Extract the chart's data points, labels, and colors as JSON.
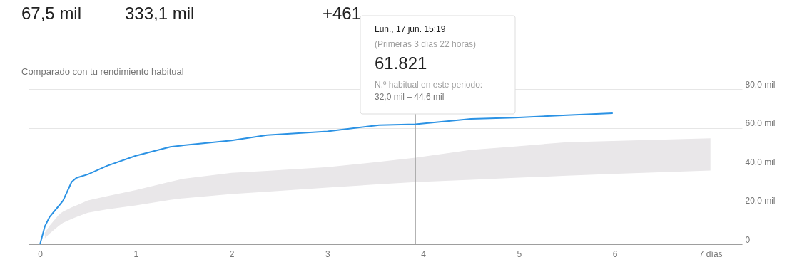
{
  "chart_data": {
    "type": "line",
    "title": "Comparado con tu rendimiento habitual",
    "annotations": [
      "67,5 mil",
      "333,1 mil",
      "+461",
      "Lun., 17 jun. 15:19",
      "(Primeras 3 días 22 horas)",
      "61.821",
      "N.º habitual en este periodo:",
      "32,0 mil – 44,6 mil"
    ],
    "x": [
      0,
      0.05,
      0.1,
      0.2,
      0.24,
      0.33,
      0.38,
      0.5,
      0.7,
      1.0,
      1.36,
      1.5,
      2.0,
      2.37,
      3.0,
      3.54,
      3.92,
      4.5,
      4.96,
      5.5,
      5.98,
      7.0
    ],
    "series": [
      {
        "color": "#2b92e4",
        "values": [
          0,
          9.2,
          14.1,
          20.0,
          22.4,
          32.1,
          34.2,
          36.0,
          40.4,
          45.6,
          50.2,
          51.0,
          53.5,
          56.2,
          58.2,
          61.4,
          61.8,
          64.6,
          65.2,
          66.5,
          67.5,
          null
        ],
        "lower": [
          null,
          3.0,
          5.5,
          9.6,
          11.0,
          13.0,
          14.0,
          16.2,
          18.0,
          20.0,
          22.8,
          23.7,
          25.9,
          27.1,
          29.2,
          30.9,
          32.0,
          33.2,
          34.2,
          35.3,
          36.2,
          38.0
        ],
        "upper": [
          null,
          6.0,
          9.5,
          15.4,
          16.8,
          19.0,
          20.0,
          22.6,
          24.8,
          27.9,
          32.2,
          33.8,
          36.8,
          37.8,
          39.7,
          42.5,
          44.6,
          48.6,
          50.4,
          52.6,
          53.2,
          54.6
        ]
      }
    ],
    "ref_lines": [
      {
        "axis": "x",
        "value": 3.92,
        "color": "#9e9e9e"
      }
    ],
    "xlim": [
      -0.12,
      7.33
    ],
    "xticks": [
      0,
      1,
      2,
      3,
      4,
      5,
      6,
      {
        "value": 7,
        "label": "7 días"
      }
    ],
    "ylim": [
      0,
      80
    ],
    "yticks": [
      0,
      {
        "value": 20,
        "label": "20,0 mil"
      },
      {
        "value": 40,
        "label": "40,0 mil"
      },
      {
        "value": 60,
        "label": "60,0 mil"
      },
      {
        "value": 80,
        "label": "80,0 mil"
      }
    ],
    "grid": "y"
  }
}
